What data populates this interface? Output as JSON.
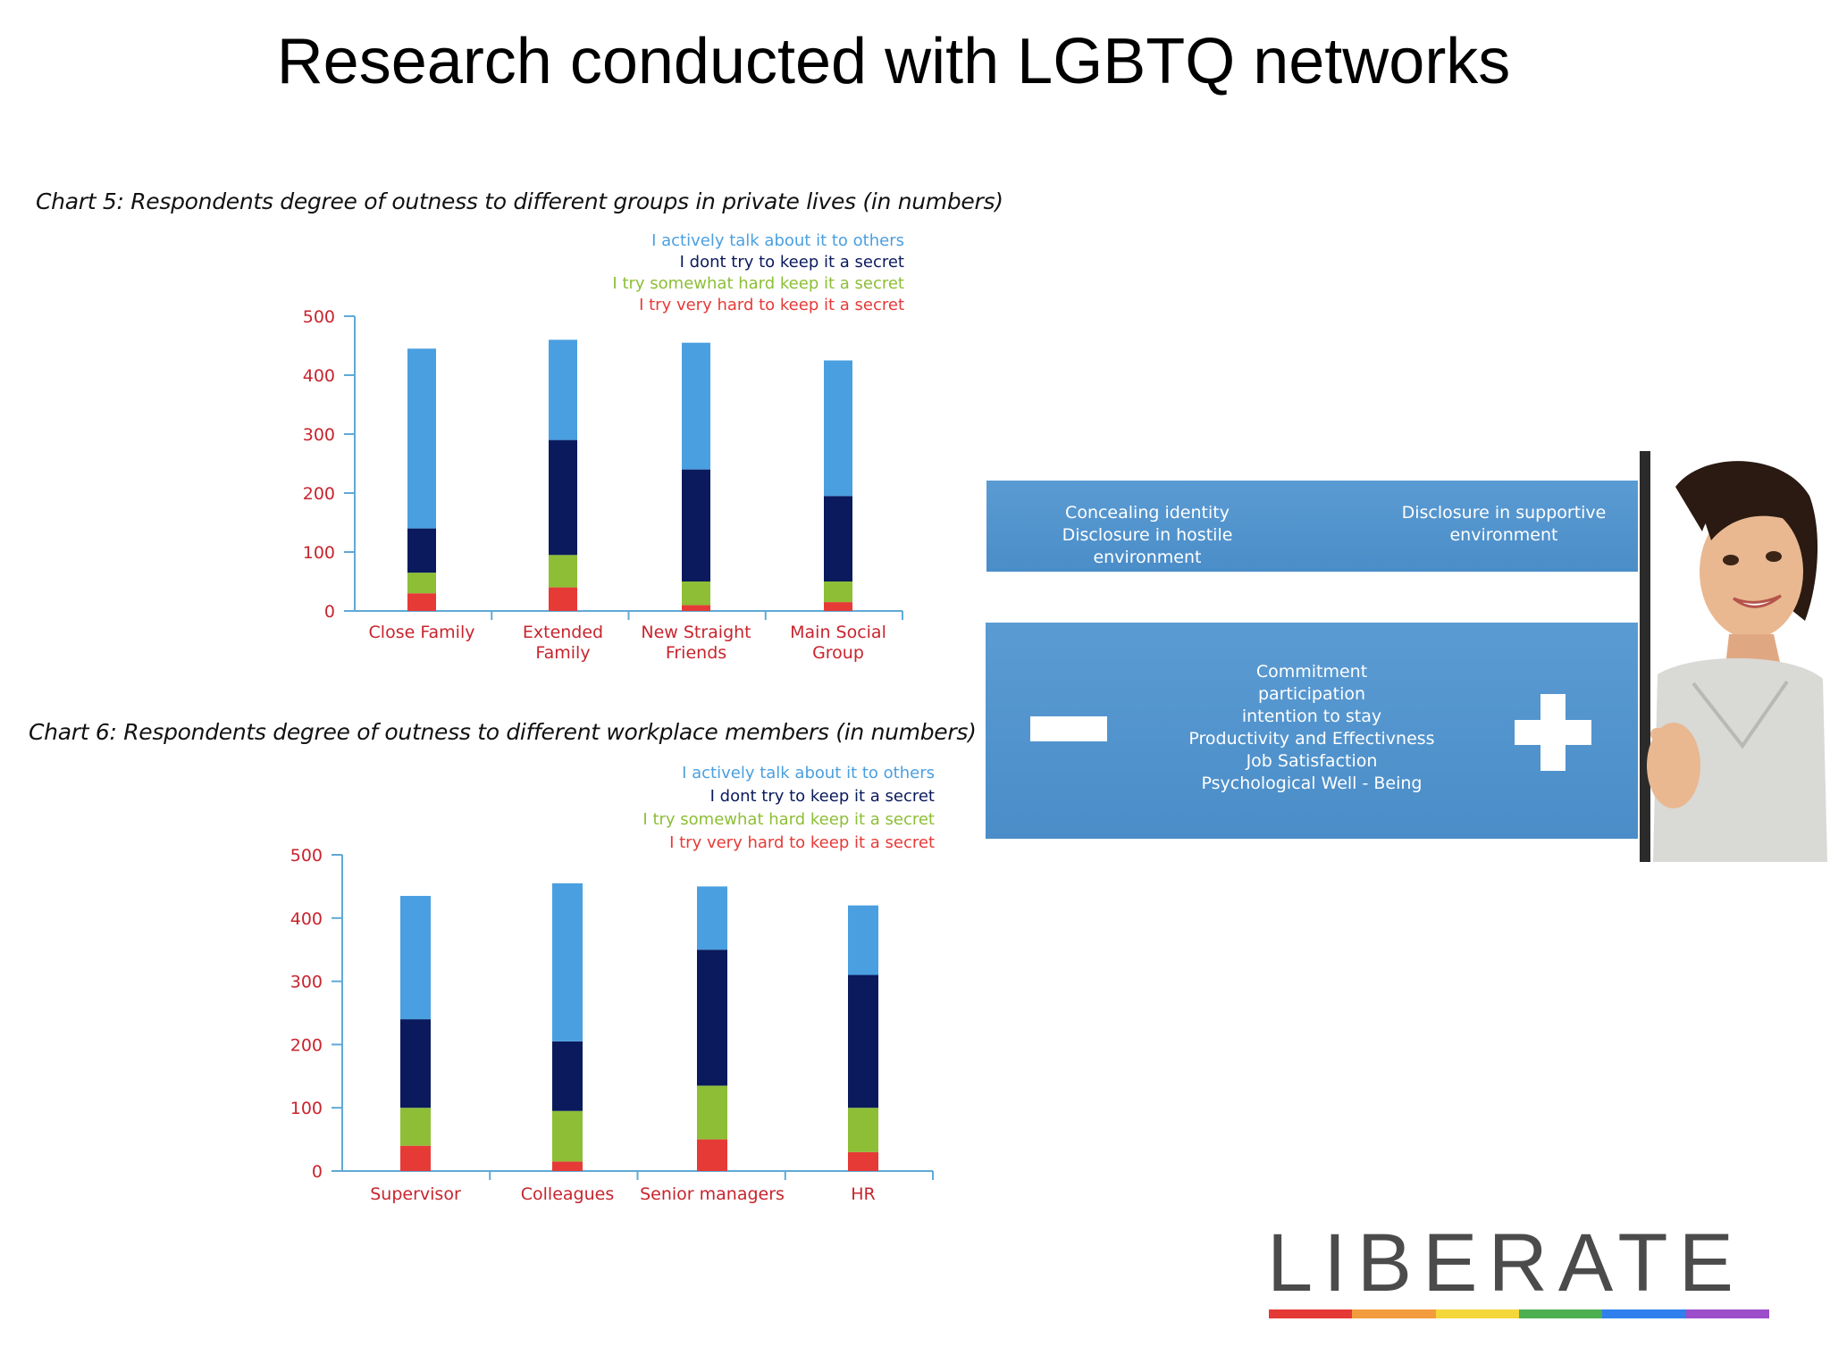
{
  "slide": {
    "title": "Research conducted with LGBTQ networks",
    "logo": "LIBERATE",
    "rainbow_colors": [
      "#e53935",
      "#f39c3d",
      "#f4d73a",
      "#4caf50",
      "#2f80ed",
      "#9b4dca"
    ]
  },
  "colors": {
    "talk": "#4a9fe0",
    "dont": "#0a1a5c",
    "somewhat": "#8dbe36",
    "very": "#e63a37",
    "axis": "#5fa9d6",
    "label": "#c8242d"
  },
  "chart_data": [
    {
      "type": "bar",
      "stacked": true,
      "title": "Chart 5: Respondents degree of outness to different groups in private lives (in numbers)",
      "categories": [
        "Close Family",
        "Extended Family",
        "New Straight Friends",
        "Main Social Group"
      ],
      "category_lines": [
        [
          "Close Family"
        ],
        [
          "Extended",
          "Family"
        ],
        [
          "New Straight",
          "Friends"
        ],
        [
          "Main Social",
          "Group"
        ]
      ],
      "legend_position": "top-right",
      "ylim": [
        0,
        500
      ],
      "yticks": [
        0,
        100,
        200,
        300,
        400,
        500
      ],
      "series": [
        {
          "name": "I try very hard to keep it a secret",
          "values": [
            30,
            40,
            10,
            15
          ]
        },
        {
          "name": "I try somewhat hard keep it a secret",
          "values": [
            35,
            55,
            40,
            35
          ]
        },
        {
          "name": "I dont try to keep it a secret",
          "values": [
            75,
            195,
            190,
            145
          ]
        },
        {
          "name": "I actively talk about it to others",
          "values": [
            305,
            170,
            215,
            230
          ]
        }
      ]
    },
    {
      "type": "bar",
      "stacked": true,
      "title": "Chart 6: Respondents degree of outness to different workplace members (in numbers)",
      "categories": [
        "Supervisor",
        "Colleagues",
        "Senior managers",
        "HR"
      ],
      "category_lines": [
        [
          "Supervisor"
        ],
        [
          "Colleagues"
        ],
        [
          "Senior managers"
        ],
        [
          "HR"
        ]
      ],
      "legend_position": "top-right",
      "ylim": [
        0,
        500
      ],
      "yticks": [
        0,
        100,
        200,
        300,
        400,
        500
      ],
      "series": [
        {
          "name": "I try very hard to keep it a secret",
          "values": [
            40,
            15,
            50,
            30
          ]
        },
        {
          "name": "I try somewhat hard keep it a secret",
          "values": [
            60,
            80,
            85,
            70
          ]
        },
        {
          "name": "I dont try to keep it a secret",
          "values": [
            140,
            110,
            215,
            210
          ]
        },
        {
          "name": "I actively talk about it to others",
          "values": [
            195,
            250,
            100,
            110
          ]
        }
      ]
    }
  ],
  "panels": {
    "top_left_line1": "Concealing identity",
    "top_left_line2": "Disclosure in hostile environment",
    "top_right_line1": "Disclosure in supportive",
    "top_right_line2": "environment",
    "benefits": [
      "Commitment",
      "participation",
      "intention to stay",
      "Productivity and Effectivness",
      "Job Satisfaction",
      "Psychological Well - Being"
    ]
  }
}
